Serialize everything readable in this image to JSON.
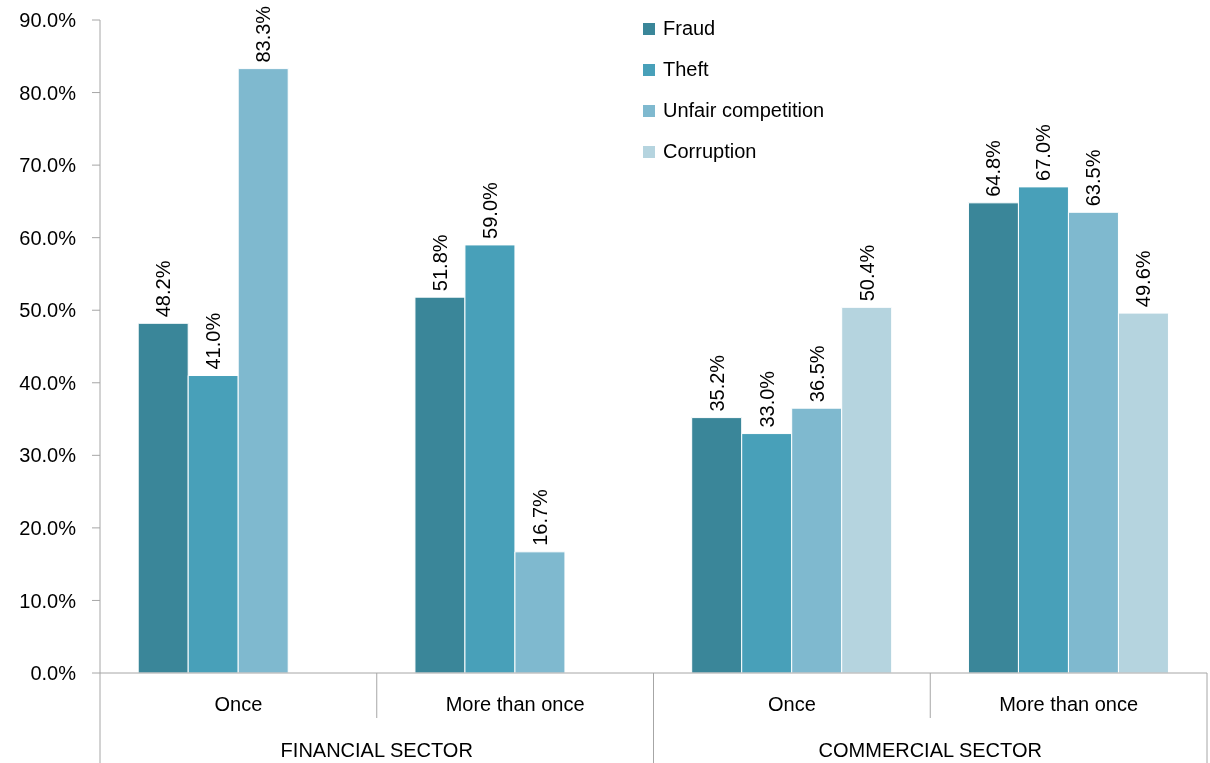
{
  "chart_data": {
    "type": "bar",
    "categories": [
      "Once",
      "More than once",
      "Once",
      "More than once"
    ],
    "series": [
      {
        "name": "Fraud",
        "color": "#3a8699",
        "values": [
          48.2,
          51.8,
          35.2,
          64.8
        ],
        "value_labels": [
          "48.2%",
          "51.8%",
          "35.2%",
          "64.8%"
        ]
      },
      {
        "name": "Theft",
        "color": "#48a0b9",
        "values": [
          41.0,
          59.0,
          33.0,
          67.0
        ],
        "value_labels": [
          "41.0%",
          "59.0%",
          "33.0%",
          "67.0%"
        ]
      },
      {
        "name": "Unfair competition",
        "color": "#7fb9cf",
        "values": [
          83.3,
          16.7,
          36.5,
          63.5
        ],
        "value_labels": [
          "83.3%",
          "16.7%",
          "36.5%",
          "63.5%"
        ]
      },
      {
        "name": "Corruption",
        "color": "#b5d4df",
        "values": [
          null,
          null,
          50.4,
          49.6
        ],
        "value_labels": [
          null,
          null,
          "50.4%",
          "49.6%"
        ]
      }
    ],
    "ylim": [
      0,
      90
    ],
    "yticks": [
      {
        "value": 0,
        "label": "0.0%"
      },
      {
        "value": 10,
        "label": "10.0%"
      },
      {
        "value": 20,
        "label": "20.0%"
      },
      {
        "value": 30,
        "label": "30.0%"
      },
      {
        "value": 40,
        "label": "40.0%"
      },
      {
        "value": 50,
        "label": "50.0%"
      },
      {
        "value": 60,
        "label": "60.0%"
      },
      {
        "value": 70,
        "label": "70.0%"
      },
      {
        "value": 80,
        "label": "80.0%"
      },
      {
        "value": 90,
        "label": "90.0%"
      }
    ],
    "legend": "top",
    "annotations": [
      "FINANCIAL SECTOR",
      "COMMERCIAL SECTOR"
    ]
  }
}
